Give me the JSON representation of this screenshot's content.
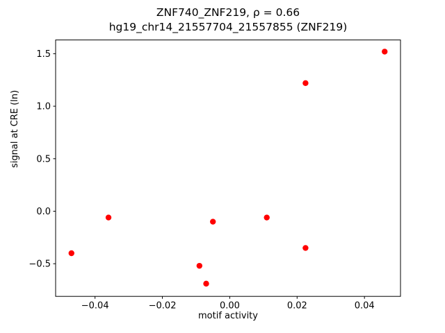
{
  "chart_data": {
    "type": "scatter",
    "title": "ZNF740_ZNF219, ρ = 0.66",
    "subtitle": "hg19_chr14_21557704_21557855 (ZNF219)",
    "xlabel": "motif activity",
    "ylabel": "signal at CRE (ln)",
    "marker_color": "#ff0000",
    "axis_color": "#000000",
    "xlim": [
      -0.0517,
      0.0507
    ],
    "ylim": [
      -0.811,
      1.631
    ],
    "xticks": [
      -0.04,
      -0.02,
      0.0,
      0.02,
      0.04
    ],
    "yticks": [
      -0.5,
      0.0,
      0.5,
      1.0,
      1.5
    ],
    "grid": false,
    "legend": "none",
    "points": [
      [
        -0.047,
        -0.4
      ],
      [
        -0.036,
        -0.06
      ],
      [
        -0.009,
        -0.52
      ],
      [
        -0.007,
        -0.69
      ],
      [
        -0.005,
        -0.1
      ],
      [
        0.011,
        -0.06
      ],
      [
        0.0225,
        1.22
      ],
      [
        0.0225,
        -0.35
      ],
      [
        0.046,
        1.52
      ]
    ]
  }
}
